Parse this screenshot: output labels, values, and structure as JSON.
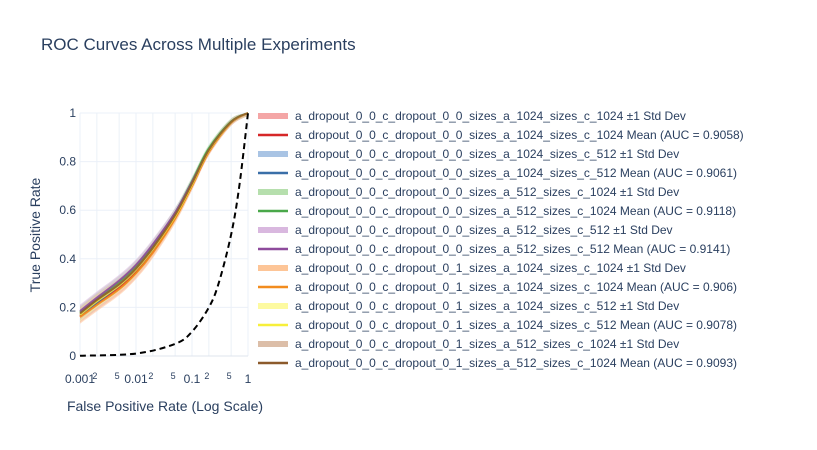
{
  "chart_data": {
    "type": "line",
    "title": "ROC Curves Across Multiple Experiments",
    "xlabel": "False Positive Rate (Log Scale)",
    "ylabel": "True Positive Rate",
    "x_scale": "log",
    "xlim": [
      0.001,
      1
    ],
    "ylim": [
      0,
      1
    ],
    "grid": true,
    "legend_placement": "right",
    "x_ticks": [
      {
        "value": 0.001,
        "label": "0.001"
      },
      {
        "value": 0.002,
        "label": "2"
      },
      {
        "value": 0.005,
        "label": "5"
      },
      {
        "value": 0.01,
        "label": "0.01"
      },
      {
        "value": 0.02,
        "label": "2"
      },
      {
        "value": 0.05,
        "label": "5"
      },
      {
        "value": 0.1,
        "label": "0.1"
      },
      {
        "value": 0.2,
        "label": "2"
      },
      {
        "value": 0.5,
        "label": "5"
      },
      {
        "value": 1,
        "label": "1"
      }
    ],
    "y_ticks": [
      {
        "value": 0,
        "label": "0"
      },
      {
        "value": 0.2,
        "label": "0.2"
      },
      {
        "value": 0.4,
        "label": "0.4"
      },
      {
        "value": 0.6,
        "label": "0.6"
      },
      {
        "value": 0.8,
        "label": "0.8"
      },
      {
        "value": 1,
        "label": "1"
      }
    ],
    "base_x": [
      0.001,
      0.002,
      0.005,
      0.01,
      0.02,
      0.05,
      0.1,
      0.2,
      0.5,
      1
    ],
    "series": [
      {
        "name": "a_dropout_0_0_c_dropout_0_0_sizes_a_1024_sizes_c_1024 ±1 Std Dev",
        "kind": "band",
        "color": "#f4a6a6",
        "mean": [
          0.165,
          0.215,
          0.28,
          0.345,
          0.43,
          0.57,
          0.7,
          0.84,
          0.96,
          1.0
        ],
        "std": 0.03
      },
      {
        "name": "a_dropout_0_0_c_dropout_0_0_sizes_a_1024_sizes_c_1024 Mean (AUC = 0.9058)",
        "kind": "mean",
        "color": "#d62728",
        "mean": [
          0.165,
          0.215,
          0.28,
          0.345,
          0.43,
          0.57,
          0.7,
          0.84,
          0.96,
          1.0
        ]
      },
      {
        "name": "a_dropout_0_0_c_dropout_0_0_sizes_a_1024_sizes_c_512 ±1 Std Dev",
        "kind": "band",
        "color": "#a9c4e4",
        "mean": [
          0.17,
          0.22,
          0.29,
          0.355,
          0.44,
          0.58,
          0.71,
          0.85,
          0.965,
          1.0
        ],
        "std": 0.03
      },
      {
        "name": "a_dropout_0_0_c_dropout_0_0_sizes_a_1024_sizes_c_512 Mean (AUC = 0.9061)",
        "kind": "mean",
        "color": "#3a6fa8",
        "mean": [
          0.17,
          0.22,
          0.29,
          0.355,
          0.44,
          0.58,
          0.71,
          0.85,
          0.965,
          1.0
        ]
      },
      {
        "name": "a_dropout_0_0_c_dropout_0_0_sizes_a_512_sizes_c_1024 ±1 Std Dev",
        "kind": "band",
        "color": "#b6dfad",
        "mean": [
          0.18,
          0.235,
          0.305,
          0.37,
          0.455,
          0.59,
          0.72,
          0.855,
          0.965,
          1.0
        ],
        "std": 0.03
      },
      {
        "name": "a_dropout_0_0_c_dropout_0_0_sizes_a_512_sizes_c_1024 Mean (AUC = 0.9118)",
        "kind": "mean",
        "color": "#4aa84a",
        "mean": [
          0.18,
          0.235,
          0.305,
          0.37,
          0.455,
          0.59,
          0.72,
          0.855,
          0.965,
          1.0
        ]
      },
      {
        "name": "a_dropout_0_0_c_dropout_0_0_sizes_a_512_sizes_c_512 ±1 Std Dev",
        "kind": "band",
        "color": "#d9b8df",
        "mean": [
          0.185,
          0.24,
          0.31,
          0.375,
          0.46,
          0.59,
          0.715,
          0.845,
          0.96,
          1.0
        ],
        "std": 0.03
      },
      {
        "name": "a_dropout_0_0_c_dropout_0_0_sizes_a_512_sizes_c_512 Mean (AUC = 0.9141)",
        "kind": "mean",
        "color": "#8e4b9c",
        "mean": [
          0.185,
          0.24,
          0.31,
          0.375,
          0.46,
          0.59,
          0.715,
          0.845,
          0.96,
          1.0
        ]
      },
      {
        "name": "a_dropout_0_0_c_dropout_0_1_sizes_a_1024_sizes_c_1024 ±1 Std Dev",
        "kind": "band",
        "color": "#fdc597",
        "mean": [
          0.16,
          0.21,
          0.275,
          0.34,
          0.425,
          0.565,
          0.7,
          0.84,
          0.96,
          1.0
        ],
        "std": 0.03
      },
      {
        "name": "a_dropout_0_0_c_dropout_0_1_sizes_a_1024_sizes_c_1024 Mean (AUC = 0.906)",
        "kind": "mean",
        "color": "#f28c1e",
        "mean": [
          0.16,
          0.21,
          0.275,
          0.34,
          0.425,
          0.565,
          0.7,
          0.84,
          0.96,
          1.0
        ]
      },
      {
        "name": "a_dropout_0_0_c_dropout_0_1_sizes_a_1024_sizes_c_512 ±1 Std Dev",
        "kind": "band",
        "color": "#fdfaa0",
        "mean": [
          0.17,
          0.225,
          0.29,
          0.355,
          0.44,
          0.575,
          0.705,
          0.845,
          0.962,
          1.0
        ],
        "std": 0.03
      },
      {
        "name": "a_dropout_0_0_c_dropout_0_1_sizes_a_1024_sizes_c_512 Mean (AUC = 0.9078)",
        "kind": "mean",
        "color": "#f7ef3a",
        "mean": [
          0.17,
          0.225,
          0.29,
          0.355,
          0.44,
          0.575,
          0.705,
          0.845,
          0.962,
          1.0
        ]
      },
      {
        "name": "a_dropout_0_0_c_dropout_0_1_sizes_a_512_sizes_c_1024 ±1 Std Dev",
        "kind": "band",
        "color": "#dcbea8",
        "mean": [
          0.175,
          0.23,
          0.295,
          0.36,
          0.445,
          0.58,
          0.71,
          0.848,
          0.963,
          1.0
        ],
        "std": 0.03
      },
      {
        "name": "a_dropout_0_0_c_dropout_0_1_sizes_a_512_sizes_c_1024 Mean (AUC = 0.9093)",
        "kind": "mean",
        "color": "#8c5a2b",
        "mean": [
          0.175,
          0.23,
          0.295,
          0.36,
          0.445,
          0.58,
          0.71,
          0.848,
          0.963,
          1.0
        ]
      }
    ],
    "reference": {
      "kind": "diagonal",
      "color": "#000000",
      "dash": true,
      "x": [
        0.001,
        0.01,
        0.05,
        0.1,
        0.2,
        0.3,
        0.5,
        0.7,
        1.0
      ],
      "y": [
        0.001,
        0.01,
        0.05,
        0.1,
        0.2,
        0.3,
        0.5,
        0.7,
        1.0
      ]
    }
  }
}
